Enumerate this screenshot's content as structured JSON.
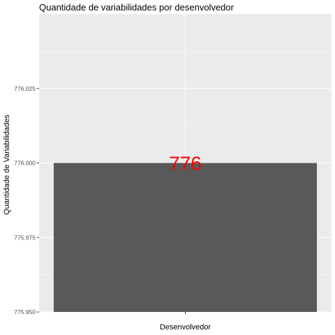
{
  "chart_data": {
    "type": "bar",
    "title": "Quantidade de variabilidades por desenvolvedor",
    "xlabel": "Desenvolvedor",
    "ylabel": "Quantidade de Variabilidades",
    "categories": [
      ""
    ],
    "values": [
      776
    ],
    "data_labels": [
      "776"
    ],
    "ylim": [
      775.95,
      776.05
    ],
    "yticks": [
      775.95,
      775.975,
      776.0,
      776.025
    ],
    "ytick_labels": [
      "775.950",
      "775.975",
      "776.000",
      "776.025"
    ],
    "grid": true,
    "panel_color": "#ebebeb",
    "grid_color": "#ffffff",
    "label_color": "#ff0000",
    "bar_color": "#595959"
  }
}
